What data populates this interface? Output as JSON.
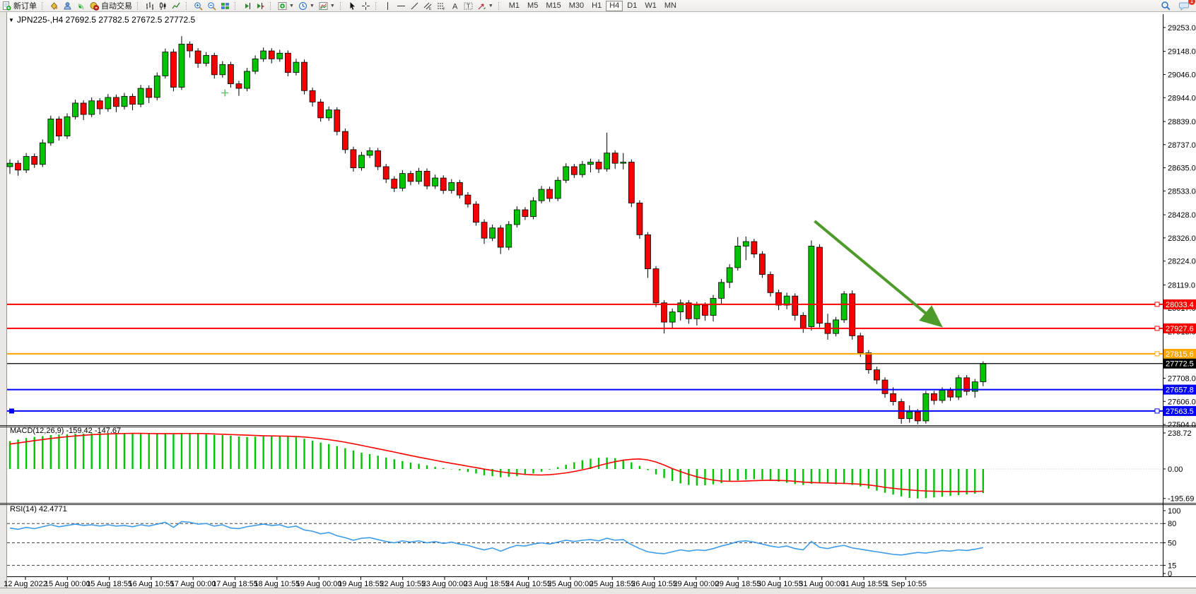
{
  "toolbar": {
    "new_order": "新订单",
    "auto_trading": "自动交易",
    "timeframes": [
      {
        "label": "M1",
        "active": false
      },
      {
        "label": "M5",
        "active": false
      },
      {
        "label": "M15",
        "active": false
      },
      {
        "label": "M30",
        "active": false
      },
      {
        "label": "H1",
        "active": false
      },
      {
        "label": "H4",
        "active": true
      },
      {
        "label": "D1",
        "active": false
      },
      {
        "label": "W1",
        "active": false
      },
      {
        "label": "MN",
        "active": false
      }
    ],
    "notification_count": "1"
  },
  "chart_title": {
    "symbol": "JPN225-,H4",
    "ohlc": "27692.5 27782.5 27672.5 27772.5"
  },
  "indicator_labels": {
    "macd": "MACD(12,26,9) -159.42 -147.67",
    "rsi": "RSI(14) 42.4771"
  },
  "chart_data": {
    "type": "candlestick",
    "symbol": "JPN225-,H4",
    "period": "H4",
    "price_axis": {
      "min": 27501,
      "max": 29312,
      "ticks": [
        "29253.0",
        "29148.0",
        "29046.0",
        "28944.0",
        "28839.0",
        "28737.0",
        "28635.0",
        "28533.0",
        "28428.0",
        "28326.0",
        "28224.0",
        "28119.0",
        "28017.0",
        "27913.0",
        "27708.0",
        "27606.0",
        "27504.0"
      ]
    },
    "hlines": [
      {
        "price": 28033.4,
        "label": "28033.4",
        "color": "#ff0000",
        "handle_right": true,
        "handle_left": false,
        "role": "resistance"
      },
      {
        "price": 27927.6,
        "label": "27927.6",
        "color": "#ff0000",
        "handle_right": true,
        "handle_left": false,
        "role": "resistance"
      },
      {
        "price": 27815.6,
        "label": "27815.6",
        "color": "#ffa500",
        "handle_right": true,
        "handle_left": false,
        "role": "pivot"
      },
      {
        "price": 27772.5,
        "label": "27772.5",
        "color": "#000000",
        "handle_right": false,
        "handle_left": false,
        "role": "current-price"
      },
      {
        "price": 27657.8,
        "label": "27657.8",
        "color": "#0000ff",
        "handle_right": false,
        "handle_left": false,
        "role": "support"
      },
      {
        "price": 27563.5,
        "label": "27563.5",
        "color": "#0000ff",
        "handle_right": true,
        "handle_left": true,
        "role": "support-selected"
      }
    ],
    "colors": {
      "up": "#00c400",
      "down": "#f40000",
      "wick": "#000000",
      "macd_hist": "#00c400",
      "macd_signal": "#ff0000",
      "rsi_line": "#3d9be9",
      "arrow": "#4e9a2a",
      "axis_text": "#000000"
    },
    "candles": [
      [
        28640,
        28672,
        28608,
        28655
      ],
      [
        28655,
        28668,
        28600,
        28625
      ],
      [
        28625,
        28700,
        28612,
        28685
      ],
      [
        28685,
        28698,
        28635,
        28650
      ],
      [
        28650,
        28760,
        28638,
        28745
      ],
      [
        28745,
        28865,
        28732,
        28850
      ],
      [
        28850,
        28862,
        28755,
        28775
      ],
      [
        28775,
        28875,
        28762,
        28860
      ],
      [
        28860,
        28935,
        28848,
        28920
      ],
      [
        28920,
        28932,
        28845,
        28870
      ],
      [
        28870,
        28945,
        28858,
        28930
      ],
      [
        28930,
        28942,
        28870,
        28895
      ],
      [
        28895,
        28960,
        28882,
        28945
      ],
      [
        28945,
        28958,
        28880,
        28905
      ],
      [
        28905,
        28965,
        28892,
        28950
      ],
      [
        28950,
        28962,
        28888,
        28915
      ],
      [
        28915,
        29000,
        28902,
        28985
      ],
      [
        28985,
        28998,
        28920,
        28945
      ],
      [
        28945,
        29055,
        28932,
        29040
      ],
      [
        29040,
        29160,
        29028,
        29145
      ],
      [
        29145,
        29158,
        28972,
        28990
      ],
      [
        28990,
        29215,
        28978,
        29180
      ],
      [
        29180,
        29192,
        29120,
        29150
      ],
      [
        29150,
        29162,
        29075,
        29095
      ],
      [
        29095,
        29145,
        29082,
        29130
      ],
      [
        29130,
        29142,
        29028,
        29045
      ],
      [
        29045,
        29105,
        29032,
        29090
      ],
      [
        29090,
        29102,
        28988,
        29005
      ],
      [
        29005,
        29018,
        28952,
        28985
      ],
      [
        28985,
        29075,
        28972,
        29060
      ],
      [
        29060,
        29130,
        29048,
        29115
      ],
      [
        29115,
        29165,
        29102,
        29150
      ],
      [
        29150,
        29162,
        29095,
        29115
      ],
      [
        29115,
        29155,
        29102,
        29140
      ],
      [
        29140,
        29152,
        29038,
        29055
      ],
      [
        29055,
        29115,
        29042,
        29100
      ],
      [
        29100,
        29112,
        28958,
        28975
      ],
      [
        28975,
        28988,
        28905,
        28925
      ],
      [
        28925,
        28938,
        28838,
        28855
      ],
      [
        28855,
        28905,
        28842,
        28890
      ],
      [
        28890,
        28902,
        28778,
        28795
      ],
      [
        28795,
        28808,
        28698,
        28715
      ],
      [
        28715,
        28728,
        28618,
        28635
      ],
      [
        28635,
        28705,
        28622,
        28690
      ],
      [
        28690,
        28725,
        28678,
        28710
      ],
      [
        28710,
        28722,
        28625,
        28640
      ],
      [
        28640,
        28652,
        28568,
        28585
      ],
      [
        28585,
        28598,
        28528,
        28545
      ],
      [
        28545,
        28625,
        28532,
        28610
      ],
      [
        28610,
        28622,
        28558,
        28575
      ],
      [
        28575,
        28635,
        28562,
        28620
      ],
      [
        28620,
        28632,
        28540,
        28555
      ],
      [
        28555,
        28605,
        28542,
        28590
      ],
      [
        28590,
        28602,
        28520,
        28535
      ],
      [
        28535,
        28585,
        28522,
        28570
      ],
      [
        28570,
        28582,
        28500,
        28515
      ],
      [
        28515,
        28528,
        28460,
        28475
      ],
      [
        28475,
        28488,
        28380,
        28395
      ],
      [
        28395,
        28408,
        28300,
        28325
      ],
      [
        28325,
        28385,
        28312,
        28370
      ],
      [
        28370,
        28382,
        28255,
        28285
      ],
      [
        28285,
        28400,
        28272,
        28385
      ],
      [
        28385,
        28465,
        28372,
        28450
      ],
      [
        28450,
        28462,
        28405,
        28420
      ],
      [
        28420,
        28505,
        28408,
        28490
      ],
      [
        28490,
        28555,
        28478,
        28540
      ],
      [
        28540,
        28552,
        28485,
        28500
      ],
      [
        28500,
        28595,
        28488,
        28580
      ],
      [
        28580,
        28655,
        28568,
        28640
      ],
      [
        28640,
        28652,
        28590,
        28605
      ],
      [
        28605,
        28665,
        28592,
        28650
      ],
      [
        28650,
        28675,
        28615,
        28660
      ],
      [
        28660,
        28672,
        28612,
        28630
      ],
      [
        28630,
        28790,
        28618,
        28700
      ],
      [
        28700,
        28712,
        28630,
        28655
      ],
      [
        28655,
        28700,
        28628,
        28660
      ],
      [
        28660,
        28672,
        28462,
        28480
      ],
      [
        28480,
        28492,
        28322,
        28340
      ],
      [
        28340,
        28352,
        28150,
        28190
      ],
      [
        28190,
        28202,
        28022,
        28040
      ],
      [
        28040,
        28052,
        27905,
        27955
      ],
      [
        27955,
        28015,
        27928,
        28000
      ],
      [
        28000,
        28055,
        27962,
        28040
      ],
      [
        28040,
        28052,
        27948,
        27970
      ],
      [
        27970,
        28045,
        27940,
        28030
      ],
      [
        28030,
        28042,
        27962,
        27985
      ],
      [
        27985,
        28075,
        27958,
        28060
      ],
      [
        28060,
        28145,
        28035,
        28130
      ],
      [
        28130,
        28210,
        28105,
        28195
      ],
      [
        28195,
        28330,
        28182,
        28290
      ],
      [
        28290,
        28332,
        28228,
        28310
      ],
      [
        28310,
        28322,
        28238,
        28255
      ],
      [
        28255,
        28268,
        28150,
        28165
      ],
      [
        28165,
        28178,
        28068,
        28085
      ],
      [
        28085,
        28098,
        28008,
        28030
      ],
      [
        28030,
        28085,
        28012,
        28070
      ],
      [
        28070,
        28082,
        27962,
        27985
      ],
      [
        27985,
        27998,
        27908,
        27930
      ],
      [
        27935,
        28315,
        27918,
        28290
      ],
      [
        28285,
        28298,
        27932,
        27950
      ],
      [
        27950,
        27992,
        27878,
        27905
      ],
      [
        27905,
        27978,
        27892,
        27965
      ],
      [
        27965,
        28092,
        27952,
        28080
      ],
      [
        28080,
        28095,
        27878,
        27895
      ],
      [
        27895,
        27908,
        27802,
        27820
      ],
      [
        27820,
        27832,
        27728,
        27745
      ],
      [
        27745,
        27758,
        27682,
        27700
      ],
      [
        27700,
        27712,
        27622,
        27640
      ],
      [
        27640,
        27668,
        27588,
        27605
      ],
      [
        27605,
        27618,
        27507,
        27530
      ],
      [
        27530,
        27588,
        27512,
        27560
      ],
      [
        27560,
        27572,
        27505,
        27520
      ],
      [
        27520,
        27652,
        27508,
        27640
      ],
      [
        27640,
        27652,
        27592,
        27610
      ],
      [
        27610,
        27668,
        27598,
        27655
      ],
      [
        27655,
        27667,
        27608,
        27625
      ],
      [
        27625,
        27722,
        27612,
        27710
      ],
      [
        27710,
        27722,
        27632,
        27650
      ],
      [
        27650,
        27705,
        27622,
        27692
      ],
      [
        27692.5,
        27782.5,
        27672.5,
        27772.5
      ]
    ],
    "macd": {
      "label": "MACD(12,26,9)",
      "value_main": "-159.42",
      "value_signal": "-147.67",
      "axis": {
        "min": -225,
        "max": 276
      },
      "axis_labels": {
        "max": "238.72",
        "zero": "0.00",
        "min": "-195.69"
      },
      "histogram": [
        185,
        195,
        205,
        212,
        218,
        224,
        228,
        230,
        233,
        234,
        236,
        237,
        238,
        238.7,
        237,
        236,
        234,
        232,
        233,
        235,
        236,
        238,
        237,
        234,
        230,
        226,
        224,
        220,
        215,
        212,
        214,
        216,
        218,
        217,
        214,
        210,
        200,
        188,
        175,
        165,
        152,
        138,
        122,
        108,
        98,
        88,
        76,
        64,
        52,
        42,
        34,
        24,
        14,
        6,
        -2,
        -10,
        -20,
        -30,
        -42,
        -48,
        -55,
        -52,
        -48,
        -40,
        -30,
        -18,
        -4,
        12,
        28,
        44,
        58,
        68,
        74,
        76,
        72,
        62,
        44,
        20,
        -8,
        -36,
        -60,
        -80,
        -96,
        -106,
        -110,
        -108,
        -102,
        -94,
        -84,
        -76,
        -70,
        -68,
        -70,
        -76,
        -84,
        -92,
        -100,
        -106,
        -98,
        -92,
        -96,
        -102,
        -100,
        -106,
        -116,
        -130,
        -144,
        -158,
        -170,
        -182,
        -192,
        -195.7,
        -193,
        -189,
        -184,
        -179,
        -174,
        -169,
        -164,
        -159.4
      ],
      "signal": [
        165,
        172,
        180,
        188,
        195,
        202,
        208,
        214,
        219,
        223,
        227,
        230,
        232,
        234,
        235,
        236,
        236,
        235,
        234,
        234,
        234,
        235,
        235,
        235,
        234,
        232,
        230,
        228,
        226,
        224,
        222,
        220,
        219,
        218,
        217,
        215,
        212,
        207,
        201,
        194,
        186,
        177,
        167,
        156,
        145,
        134,
        123,
        112,
        100,
        89,
        78,
        68,
        57,
        47,
        37,
        28,
        18,
        9,
        -1,
        -10,
        -19,
        -26,
        -31,
        -36,
        -39,
        -40,
        -38,
        -33,
        -26,
        -17,
        -6,
        6,
        22,
        36,
        48,
        58,
        64,
        66,
        60,
        46,
        26,
        2,
        -18,
        -36,
        -52,
        -64,
        -74,
        -80,
        -82,
        -82,
        -80,
        -78,
        -76,
        -75,
        -76,
        -78,
        -82,
        -87,
        -90,
        -92,
        -93,
        -95,
        -96,
        -98,
        -101,
        -106,
        -113,
        -122,
        -128,
        -134,
        -139,
        -143,
        -146,
        -148,
        -149,
        -150,
        -150,
        -150,
        -149,
        -147.7
      ]
    },
    "rsi": {
      "label": "RSI(14)",
      "value": "42.4771",
      "axis": {
        "min": 0,
        "max": 100
      },
      "levels": [
        80,
        50,
        15
      ],
      "axis_labels": [
        "100",
        "80",
        "50",
        "15",
        "0"
      ],
      "values": [
        73,
        71,
        74,
        72,
        75,
        78,
        75,
        77,
        79,
        77,
        78,
        76,
        78,
        76,
        77,
        75,
        78,
        76,
        79,
        82,
        74,
        83,
        82,
        79,
        80,
        76,
        78,
        73,
        72,
        75,
        77,
        79,
        77,
        78,
        74,
        76,
        70,
        68,
        64,
        66,
        61,
        58,
        54,
        57,
        58,
        55,
        52,
        50,
        53,
        51,
        53,
        50,
        52,
        49,
        51,
        48,
        46,
        42,
        39,
        42,
        37,
        42,
        46,
        45,
        48,
        50,
        48,
        51,
        54,
        52,
        54,
        55,
        53,
        57,
        54,
        55,
        47,
        41,
        36,
        34,
        33,
        36,
        39,
        37,
        39,
        38,
        41,
        45,
        48,
        52,
        53,
        51,
        48,
        45,
        43,
        45,
        41,
        39,
        52,
        43,
        41,
        44,
        46,
        42,
        40,
        38,
        36,
        34,
        32,
        31,
        33,
        35,
        34,
        36,
        38,
        37,
        39,
        38,
        40,
        42.5
      ]
    },
    "time_labels": [
      "12 Aug 2022",
      "15 Aug 00:00",
      "15 Aug 18:55",
      "16 Aug 10:55",
      "17 Aug 00:00",
      "17 Aug 18:55",
      "18 Aug 10:55",
      "19 Aug 00:00",
      "19 Aug 18:55",
      "22 Aug 10:55",
      "23 Aug 00:00",
      "23 Aug 18:55",
      "24 Aug 10:55",
      "25 Aug 00:00",
      "25 Aug 18:55",
      "26 Aug 10:55",
      "29 Aug 00:00",
      "29 Aug 18:55",
      "30 Aug 10:55",
      "31 Aug 00:00",
      "31 Aug 18:55",
      "1 Sep 10:55"
    ],
    "annotations": {
      "trend_arrow": {
        "x1_bar": 98.4,
        "y1_price": 28400,
        "x2_bar": 113.8,
        "y2_price": 27940
      },
      "cross_marker": {
        "bar": 26.3,
        "price": 28965
      }
    }
  }
}
